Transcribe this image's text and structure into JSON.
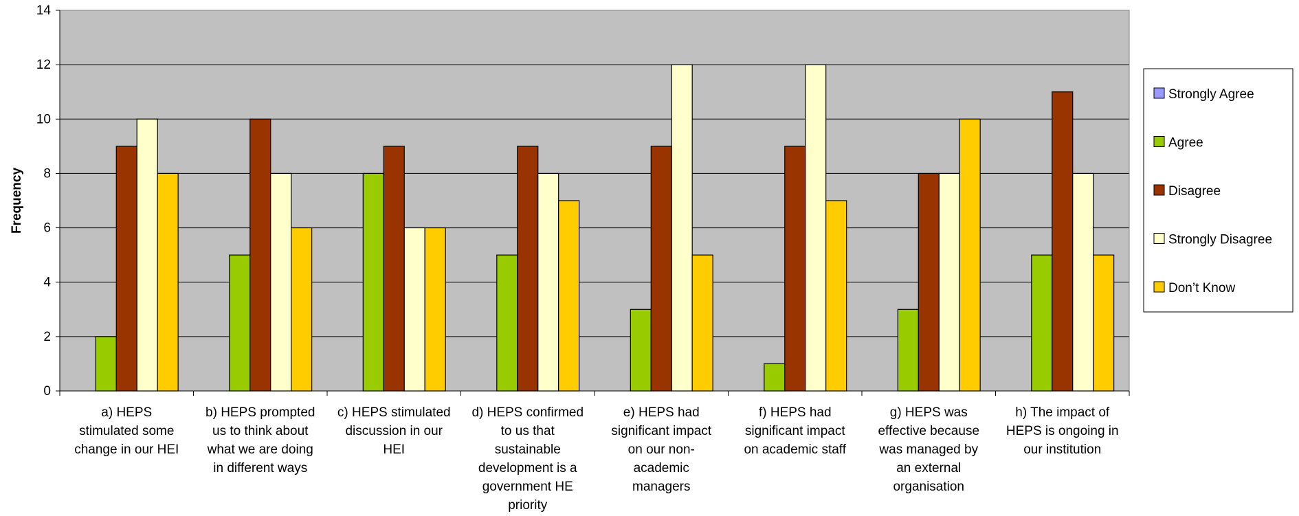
{
  "chart_data": {
    "type": "bar",
    "ylabel": "Frequency",
    "xlabel": "",
    "ylim": [
      0,
      14
    ],
    "yticks": [
      0,
      2,
      4,
      6,
      8,
      10,
      12,
      14
    ],
    "grid": true,
    "legend_position": "right",
    "plot_background": "#c0c0c0",
    "categories": [
      "a) HEPS stimulated some change in our HEI",
      "b) HEPS prompted us to think about what we are doing in different ways",
      "c) HEPS stimulated discussion in our HEI",
      "d) HEPS confirmed to us that sustainable development is a government HE priority",
      "e) HEPS had significant impact on our non-academic managers",
      "f) HEPS had significant impact on academic staff",
      "g) HEPS was effective because was managed by an external organisation",
      "h) The impact of HEPS is ongoing in our institution"
    ],
    "category_lines": [
      [
        "a) HEPS",
        "stimulated some",
        "change in our HEI"
      ],
      [
        "b) HEPS prompted",
        "us to think about",
        "what we are doing",
        "in different ways"
      ],
      [
        "c) HEPS stimulated",
        "discussion in our",
        "HEI"
      ],
      [
        "d) HEPS confirmed",
        "to us that",
        "sustainable",
        "development is a",
        "government HE",
        "priority"
      ],
      [
        "e) HEPS had",
        "significant impact",
        "on our non-",
        "academic",
        "managers"
      ],
      [
        "f) HEPS had",
        "significant impact",
        "on academic staff"
      ],
      [
        "g) HEPS was",
        "effective because",
        "was managed by",
        "an external",
        "organisation"
      ],
      [
        "h) The impact of",
        "HEPS is ongoing in",
        "our institution"
      ]
    ],
    "series": [
      {
        "name": "Strongly Agree",
        "color": "#9999ff",
        "values": [
          0,
          0,
          0,
          0,
          0,
          0,
          0,
          0
        ]
      },
      {
        "name": "Agree",
        "color": "#99cc00",
        "values": [
          2,
          5,
          8,
          5,
          3,
          1,
          3,
          5
        ]
      },
      {
        "name": "Disagree",
        "color": "#993300",
        "values": [
          9,
          10,
          9,
          9,
          9,
          9,
          8,
          11
        ]
      },
      {
        "name": "Strongly Disagree",
        "color": "#ffffcc",
        "values": [
          10,
          8,
          6,
          8,
          12,
          12,
          8,
          8
        ]
      },
      {
        "name": "Don’t Know",
        "color": "#ffcc00",
        "values": [
          8,
          6,
          6,
          7,
          5,
          7,
          10,
          5
        ]
      }
    ]
  }
}
